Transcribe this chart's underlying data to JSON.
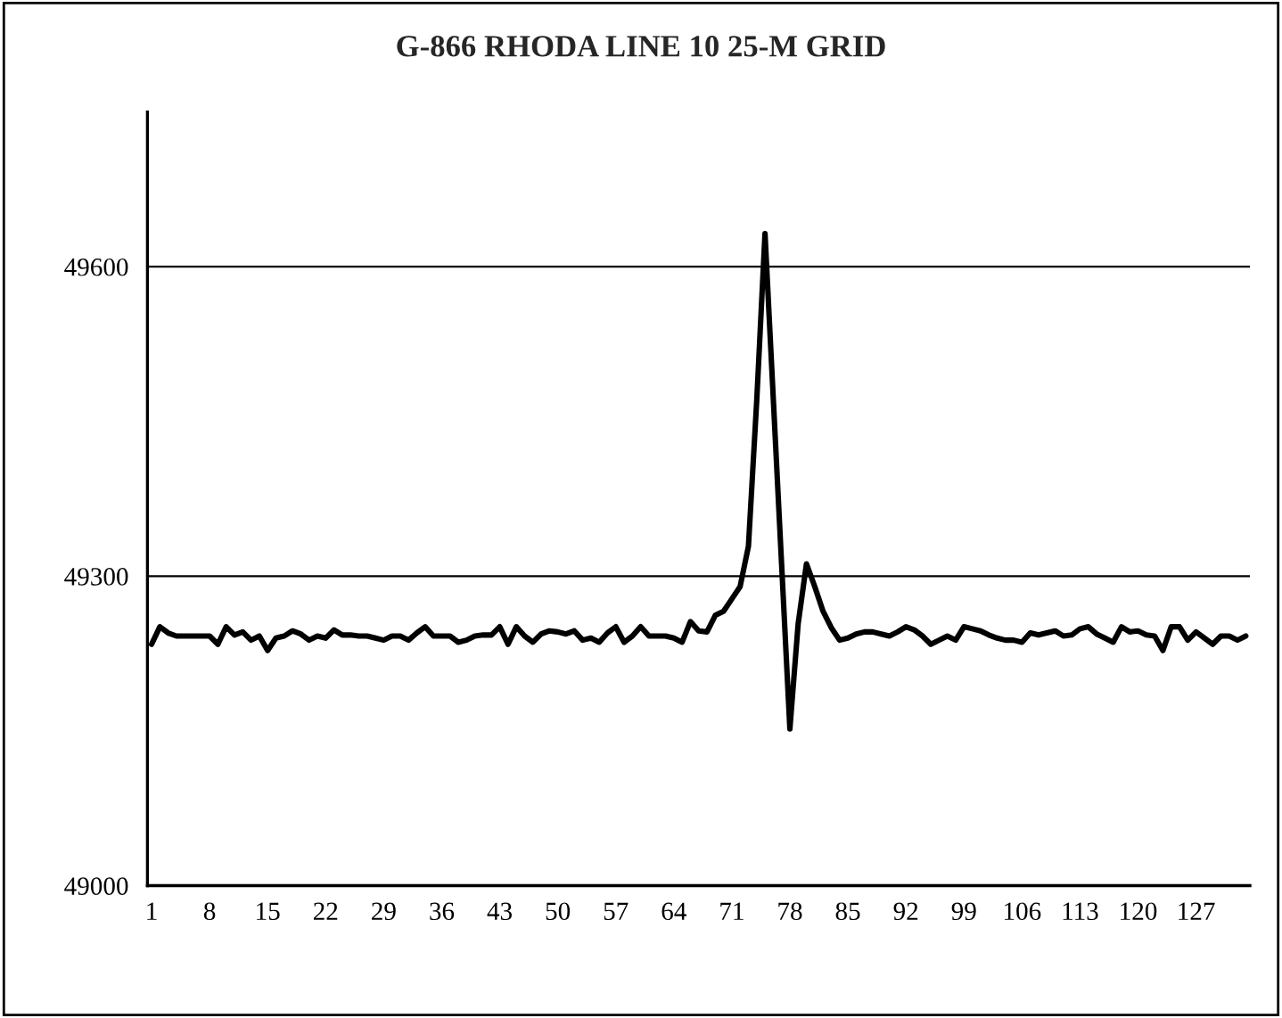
{
  "chart_data": {
    "type": "line",
    "title": "G-866 RHODA LINE 10 25-M GRID",
    "categories": [
      "1",
      null,
      null,
      null,
      null,
      null,
      null,
      "8",
      null,
      null,
      null,
      null,
      null,
      null,
      "15",
      null,
      null,
      null,
      null,
      null,
      null,
      "22",
      null,
      null,
      null,
      null,
      null,
      null,
      "29",
      null,
      null,
      null,
      null,
      null,
      null,
      "36",
      null,
      null,
      null,
      null,
      null,
      null,
      "43",
      null,
      null,
      null,
      null,
      null,
      null,
      "50",
      null,
      null,
      null,
      null,
      null,
      null,
      "57",
      null,
      null,
      null,
      null,
      null,
      null,
      "64",
      null,
      null,
      null,
      null,
      null,
      null,
      "71",
      null,
      null,
      null,
      null,
      null,
      null,
      "78",
      null,
      null,
      null,
      null,
      null,
      null,
      "85",
      null,
      null,
      null,
      null,
      null,
      null,
      "92",
      null,
      null,
      null,
      null,
      null,
      null,
      "99",
      null,
      null,
      null,
      null,
      null,
      null,
      "106",
      null,
      null,
      null,
      null,
      null,
      null,
      "113",
      null,
      null,
      null,
      null,
      null,
      null,
      "120",
      null,
      null,
      null,
      null,
      null,
      null,
      "127",
      null,
      null,
      null,
      null,
      null,
      null
    ],
    "series": [
      {
        "color": "#000000",
        "values": [
          49234,
          49251,
          49245,
          49242,
          49242,
          49242,
          49242,
          49242,
          49234,
          49251,
          49243,
          49246,
          49238,
          49242,
          49228,
          49240,
          49242,
          49247,
          49244,
          49238,
          49242,
          49240,
          49248,
          49243,
          49243,
          49242,
          49242,
          49240,
          49238,
          49242,
          49242,
          49238,
          49245,
          49251,
          49242,
          49242,
          49242,
          49236,
          49238,
          49242,
          49243,
          49243,
          49251,
          49234,
          49251,
          49242,
          49236,
          49244,
          49247,
          49246,
          49244,
          49247,
          49238,
          49240,
          49236,
          49245,
          49251,
          49236,
          49242,
          49251,
          49242,
          49242,
          49242,
          49240,
          49236,
          49256,
          49247,
          49246,
          49262,
          49266,
          49278,
          49290,
          49329,
          49470,
          49632,
          49472,
          49312,
          49152,
          49254,
          49312,
          49290,
          49266,
          49250,
          49238,
          49240,
          49244,
          49246,
          49246,
          49244,
          49242,
          49246,
          49251,
          49248,
          49242,
          49234,
          49238,
          49242,
          49238,
          49251,
          49249,
          49247,
          49243,
          49240,
          49238,
          49238,
          49236,
          49245,
          49243,
          49245,
          49247,
          49242,
          49243,
          49249,
          49251,
          49244,
          49240,
          49236,
          49251,
          49246,
          49247,
          49243,
          49242,
          49228,
          49251,
          49251,
          49238,
          49246,
          49240,
          49234,
          49242,
          49242,
          49238,
          49242
        ]
      }
    ],
    "ylim": [
      49000,
      49750
    ],
    "yticks": [
      49000,
      49300,
      49600
    ],
    "grid": "y",
    "marker": "none",
    "line_style": "solid"
  }
}
